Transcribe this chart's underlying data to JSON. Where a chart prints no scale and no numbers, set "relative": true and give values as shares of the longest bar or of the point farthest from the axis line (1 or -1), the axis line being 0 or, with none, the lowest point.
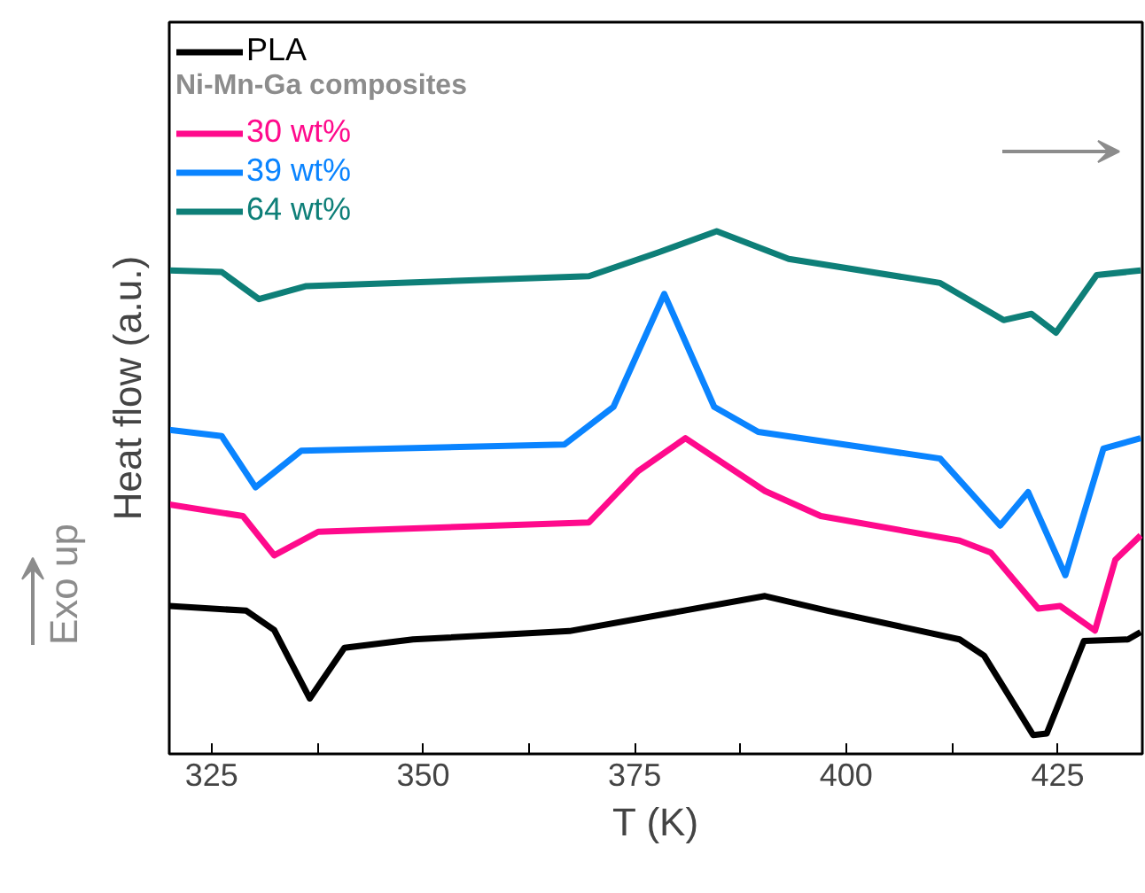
{
  "chart_data": {
    "type": "line",
    "relative": true,
    "xlabel": "T (K)",
    "ylabel": "Heat flow (a.u.)",
    "legend_title": "Ni-Mn-Ga composites",
    "legend": "top left",
    "grid": false,
    "xlim": [
      320,
      435
    ],
    "xticks": [
      325,
      {
        "value": 337.5,
        "label": null
      },
      350,
      {
        "value": 362.5,
        "label": null
      },
      375,
      {
        "value": 387.5,
        "label": null
      },
      400,
      {
        "value": 412.5,
        "label": null
      },
      425
    ],
    "annotations": [
      "Exo up"
    ],
    "series": [
      {
        "name": "PLA",
        "color": "#000000",
        "x": [
          320,
          329.1,
          332.4,
          336.6,
          340.7,
          348.8,
          367.3,
          390.4,
          397.8,
          413.4,
          416.3,
          422.1,
          423.7,
          428.1,
          433.3,
          434.8
        ],
        "values": [
          0.283,
          0.274,
          0.237,
          0.106,
          0.203,
          0.219,
          0.235,
          0.302,
          0.274,
          0.219,
          0.188,
          0.036,
          0.039,
          0.216,
          0.219,
          0.233
        ]
      },
      {
        "name": "30 wt%",
        "color": "#ff0a8c",
        "x": [
          320,
          328.7,
          332.4,
          337.6,
          369.6,
          375.4,
          381.0,
          390.4,
          397.0,
          413.4,
          417.1,
          422.7,
          425.3,
          429.4,
          431.8,
          434.8
        ],
        "values": [
          0.477,
          0.455,
          0.38,
          0.425,
          0.443,
          0.541,
          0.604,
          0.503,
          0.455,
          0.408,
          0.385,
          0.278,
          0.283,
          0.236,
          0.371,
          0.418
        ]
      },
      {
        "name": "39 wt%",
        "color": "#0a84ff",
        "x": [
          320,
          326.2,
          330.2,
          335.6,
          366.7,
          372.5,
          378.5,
          384.4,
          389.6,
          411.1,
          418.2,
          421.5,
          425.9,
          430.4,
          434.8
        ],
        "values": [
          0.62,
          0.608,
          0.51,
          0.58,
          0.592,
          0.664,
          0.88,
          0.664,
          0.616,
          0.565,
          0.437,
          0.501,
          0.342,
          0.584,
          0.604
        ]
      },
      {
        "name": "64 wt%",
        "color": "#0e7f78",
        "x": [
          320,
          326.2,
          330.6,
          336.2,
          369.6,
          377.7,
          384.7,
          393.2,
          411.1,
          418.6,
          421.9,
          424.8,
          429.6,
          434.8
        ],
        "values": [
          0.925,
          0.922,
          0.87,
          0.895,
          0.914,
          0.959,
          1.0,
          0.947,
          0.901,
          0.83,
          0.842,
          0.806,
          0.916,
          0.925
        ]
      }
    ]
  }
}
